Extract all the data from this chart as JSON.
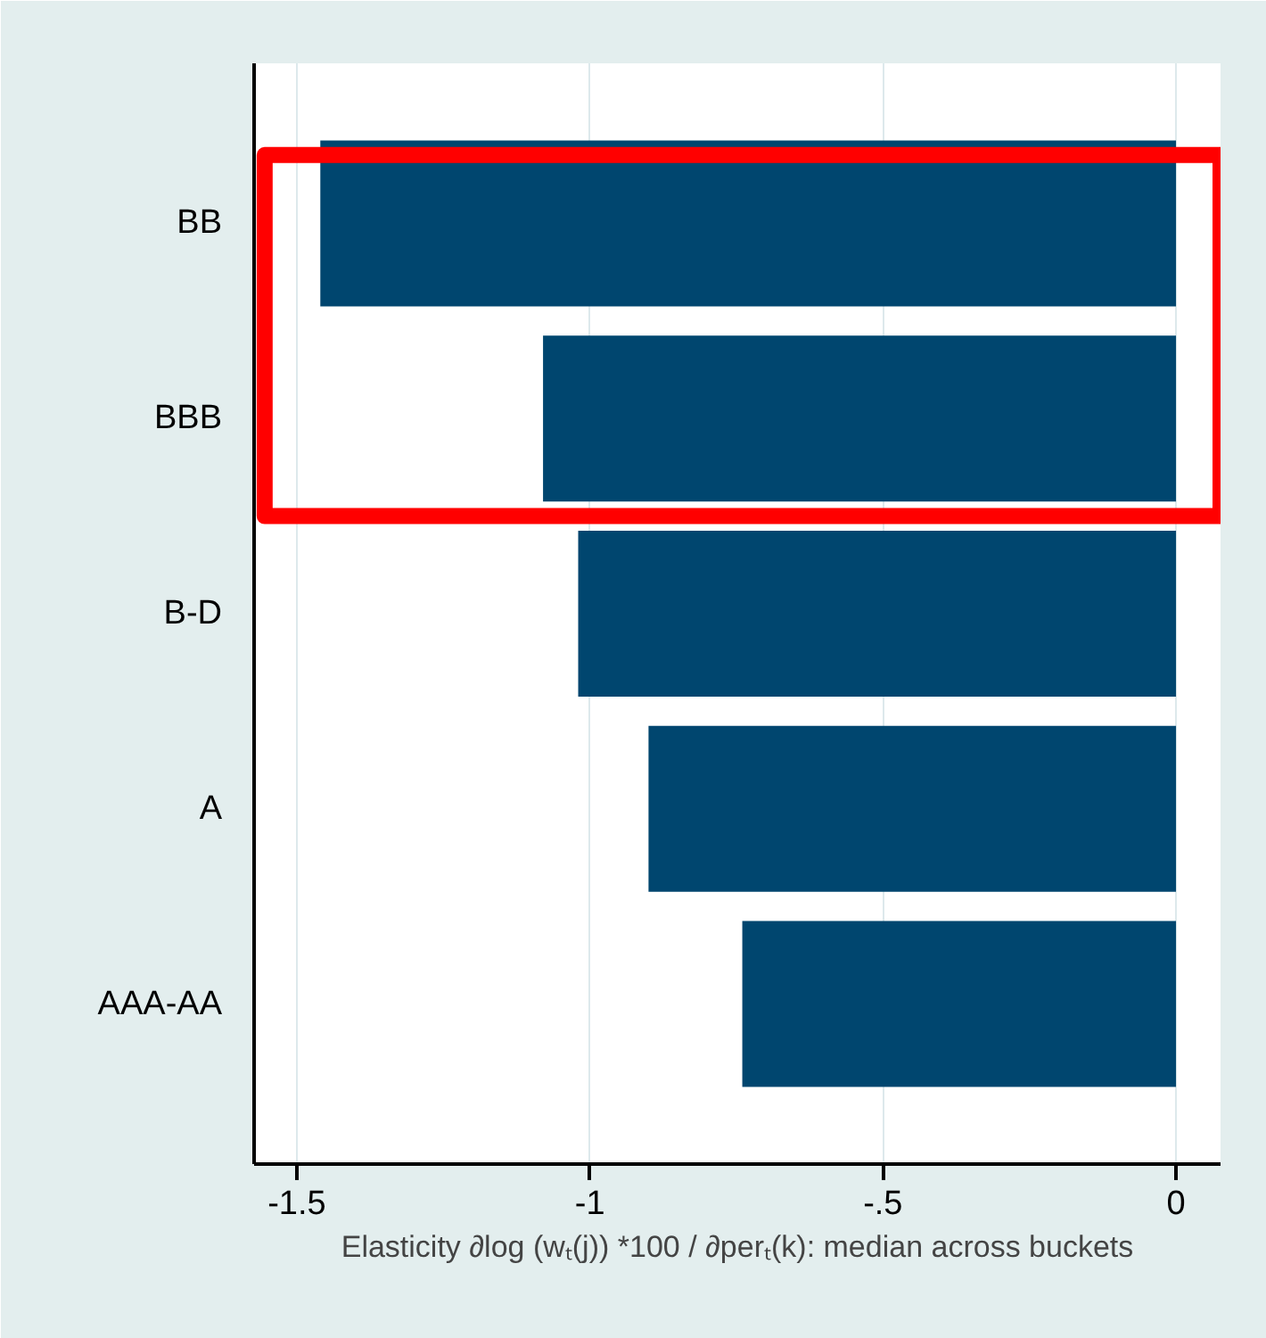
{
  "chart_data": {
    "type": "bar",
    "orientation": "horizontal",
    "categories": [
      "BB",
      "BBB",
      "B-D",
      "A",
      "AAA-AA"
    ],
    "values": [
      -1.46,
      -1.08,
      -1.02,
      -0.9,
      -0.74
    ],
    "color": "#00466f",
    "xlabel": "Elasticity ∂log (wₜ(j)) *100 / ∂perₜ(k): median across buckets",
    "xlim": [
      -1.573,
      0.076
    ],
    "xticks": [
      {
        "value": -1.5,
        "label": "-1.5"
      },
      {
        "value": -1,
        "label": "-1"
      },
      {
        "value": -0.5,
        "label": "-.5"
      },
      {
        "value": 0,
        "label": "0"
      }
    ],
    "grid": "x"
  }
}
